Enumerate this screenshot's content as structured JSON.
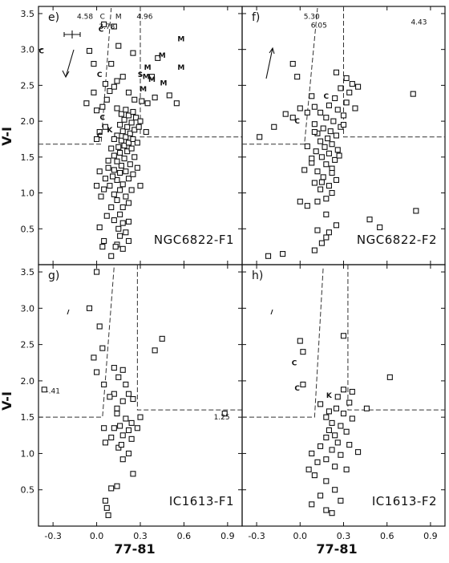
{
  "chart_data": [
    {
      "type": "scatter",
      "panel": "e)",
      "label": "NGC6822-F1",
      "xlim": [
        -0.4,
        1.0
      ],
      "ylim": [
        0.0,
        3.6
      ],
      "xticks": [],
      "yticks": [
        "0.5",
        "1.0",
        "1.5",
        "2.0",
        "2.5",
        "3.0",
        "3.5"
      ],
      "xlabel": "",
      "ylabel": "V-I",
      "boundary": {
        "diag": [
          [
            0.1,
            3.6
          ],
          [
            0.03,
            1.68
          ]
        ],
        "horizontal_y": 1.68,
        "vertical_x": 0.3,
        "horizontal_right_y": 1.78
      },
      "off_scale_notes": [
        {
          "text": "4.58",
          "x": -0.08,
          "y": 3.46
        },
        {
          "text": "3.78",
          "x": 0.07,
          "y": 3.32
        },
        {
          "text": "4.96",
          "x": 0.33,
          "y": 3.46
        },
        {
          "text": "C",
          "x": 0.04,
          "y": 3.46
        },
        {
          "text": "M",
          "x": 0.15,
          "y": 3.46
        }
      ],
      "letter_marks": [
        {
          "text": "C",
          "x": -0.38,
          "y": 2.98
        },
        {
          "text": "C",
          "x": 0.03,
          "y": 3.28
        },
        {
          "text": "C",
          "x": 0.02,
          "y": 2.65
        },
        {
          "text": "C",
          "x": 0.04,
          "y": 2.05
        },
        {
          "text": "C",
          "x": 0.02,
          "y": 1.8
        },
        {
          "text": "K",
          "x": 0.09,
          "y": 1.88
        },
        {
          "text": "M",
          "x": 0.58,
          "y": 3.15
        },
        {
          "text": "M",
          "x": 0.45,
          "y": 2.92
        },
        {
          "text": "M",
          "x": 0.35,
          "y": 2.75
        },
        {
          "text": "M",
          "x": 0.58,
          "y": 2.75
        },
        {
          "text": "M",
          "x": 0.38,
          "y": 2.58
        },
        {
          "text": "M",
          "x": 0.46,
          "y": 2.53
        },
        {
          "text": "M",
          "x": 0.34,
          "y": 2.62
        },
        {
          "text": "M",
          "x": 0.32,
          "y": 2.45
        },
        {
          "text": "S",
          "x": 0.3,
          "y": 2.65
        }
      ],
      "points": [
        [
          0.1,
          0.12
        ],
        [
          0.14,
          0.28
        ],
        [
          0.18,
          0.22
        ],
        [
          0.16,
          0.4
        ],
        [
          0.2,
          0.45
        ],
        [
          0.15,
          0.5
        ],
        [
          0.22,
          0.33
        ],
        [
          0.05,
          0.33
        ],
        [
          0.04,
          0.25
        ],
        [
          0.13,
          0.25
        ],
        [
          0.12,
          0.62
        ],
        [
          0.16,
          0.7
        ],
        [
          0.18,
          0.8
        ],
        [
          0.1,
          0.8
        ],
        [
          0.22,
          0.86
        ],
        [
          0.14,
          0.9
        ],
        [
          0.2,
          0.95
        ],
        [
          0.12,
          0.98
        ],
        [
          0.16,
          1.04
        ],
        [
          0.24,
          1.04
        ],
        [
          0.09,
          1.1
        ],
        [
          0.18,
          1.12
        ],
        [
          0.14,
          1.18
        ],
        [
          0.22,
          1.2
        ],
        [
          0.11,
          1.23
        ],
        [
          0.16,
          1.28
        ],
        [
          0.2,
          1.3
        ],
        [
          0.25,
          1.26
        ],
        [
          0.12,
          1.32
        ],
        [
          0.02,
          1.3
        ],
        [
          0.17,
          1.38
        ],
        [
          0.23,
          1.4
        ],
        [
          0.14,
          1.44
        ],
        [
          0.19,
          1.48
        ],
        [
          0.26,
          1.5
        ],
        [
          0.12,
          1.52
        ],
        [
          0.16,
          1.56
        ],
        [
          0.21,
          1.58
        ],
        [
          0.24,
          1.62
        ],
        [
          0.15,
          1.64
        ],
        [
          0.19,
          1.66
        ],
        [
          0.22,
          1.7
        ],
        [
          0.17,
          1.73
        ],
        [
          0.25,
          1.75
        ],
        [
          0.2,
          1.78
        ],
        [
          0.14,
          1.8
        ],
        [
          0.23,
          1.83
        ],
        [
          0.18,
          1.86
        ],
        [
          0.26,
          1.88
        ],
        [
          0.21,
          1.92
        ],
        [
          0.16,
          1.95
        ],
        [
          0.24,
          1.98
        ],
        [
          0.19,
          2.02
        ],
        [
          0.27,
          2.05
        ],
        [
          0.22,
          2.08
        ],
        [
          0.17,
          2.1
        ],
        [
          0.25,
          2.13
        ],
        [
          0.2,
          2.16
        ],
        [
          0.14,
          2.18
        ],
        [
          0.28,
          1.7
        ],
        [
          0.29,
          1.92
        ],
        [
          0.12,
          1.75
        ],
        [
          0.1,
          1.62
        ],
        [
          0.08,
          1.45
        ],
        [
          0.06,
          1.2
        ],
        [
          0.05,
          1.05
        ],
        [
          0.03,
          0.95
        ],
        [
          0.3,
          1.1
        ],
        [
          0.28,
          1.35
        ],
        [
          0.0,
          1.75
        ],
        [
          0.04,
          2.2
        ],
        [
          0.07,
          2.3
        ],
        [
          0.09,
          2.42
        ],
        [
          0.12,
          2.48
        ],
        [
          0.06,
          2.52
        ],
        [
          0.14,
          2.56
        ],
        [
          0.18,
          2.62
        ],
        [
          0.22,
          2.4
        ],
        [
          0.26,
          2.3
        ],
        [
          0.31,
          2.28
        ],
        [
          0.35,
          2.25
        ],
        [
          0.4,
          2.33
        ],
        [
          0.5,
          2.36
        ],
        [
          0.55,
          2.25
        ],
        [
          0.38,
          2.62
        ],
        [
          0.42,
          2.88
        ],
        [
          0.25,
          2.95
        ],
        [
          0.15,
          3.05
        ],
        [
          0.1,
          2.8
        ],
        [
          0.12,
          3.32
        ],
        [
          0.05,
          3.35
        ],
        [
          0.3,
          2.0
        ],
        [
          0.34,
          1.85
        ],
        [
          0.0,
          2.15
        ],
        [
          -0.02,
          2.4
        ],
        [
          -0.07,
          2.25
        ],
        [
          -0.02,
          2.8
        ],
        [
          -0.05,
          2.98
        ],
        [
          0.02,
          1.85
        ],
        [
          0.06,
          1.92
        ],
        [
          0.08,
          1.35
        ],
        [
          0.0,
          1.1
        ],
        [
          0.02,
          0.52
        ],
        [
          0.07,
          0.68
        ],
        [
          0.22,
          0.6
        ],
        [
          0.18,
          0.58
        ]
      ]
    },
    {
      "type": "scatter",
      "panel": "f)",
      "label": "NGC6822-F2",
      "xlim": [
        -0.4,
        1.0
      ],
      "ylim": [
        0.0,
        3.6
      ],
      "xticks": [],
      "yticks": [],
      "xlabel": "",
      "ylabel": "",
      "boundary": {
        "diag": [
          [
            0.12,
            3.6
          ],
          [
            0.03,
            1.68
          ]
        ],
        "horizontal_y": 1.68,
        "vertical_x": 0.3,
        "horizontal_right_y": 1.78
      },
      "off_scale_notes": [
        {
          "text": "5.30",
          "x": 0.08,
          "y": 3.46
        },
        {
          "text": "6.05",
          "x": 0.13,
          "y": 3.34
        },
        {
          "text": "4.43",
          "x": 0.82,
          "y": 3.38
        }
      ],
      "letter_marks": [
        {
          "text": "C",
          "x": -0.02,
          "y": 2.0
        },
        {
          "text": "C",
          "x": 0.18,
          "y": 2.35
        }
      ],
      "points": [
        [
          -0.22,
          0.12
        ],
        [
          -0.12,
          0.15
        ],
        [
          0.1,
          0.2
        ],
        [
          0.15,
          0.3
        ],
        [
          0.18,
          0.38
        ],
        [
          0.2,
          0.45
        ],
        [
          0.12,
          0.48
        ],
        [
          0.25,
          0.55
        ],
        [
          0.48,
          0.63
        ],
        [
          0.55,
          0.52
        ],
        [
          0.8,
          0.75
        ],
        [
          0.05,
          0.82
        ],
        [
          0.12,
          0.88
        ],
        [
          0.18,
          0.92
        ],
        [
          0.22,
          1.0
        ],
        [
          0.14,
          1.05
        ],
        [
          0.2,
          1.1
        ],
        [
          0.1,
          1.14
        ],
        [
          0.25,
          1.18
        ],
        [
          0.16,
          1.22
        ],
        [
          0.12,
          1.3
        ],
        [
          0.22,
          1.34
        ],
        [
          0.18,
          1.4
        ],
        [
          0.08,
          1.42
        ],
        [
          0.24,
          1.46
        ],
        [
          0.15,
          1.5
        ],
        [
          0.2,
          1.55
        ],
        [
          0.11,
          1.58
        ],
        [
          0.26,
          1.6
        ],
        [
          0.17,
          1.64
        ],
        [
          0.22,
          1.68
        ],
        [
          0.14,
          1.72
        ],
        [
          0.19,
          1.76
        ],
        [
          0.25,
          1.8
        ],
        [
          0.12,
          1.83
        ],
        [
          0.21,
          1.86
        ],
        [
          0.16,
          1.9
        ],
        [
          0.28,
          1.92
        ],
        [
          0.1,
          1.96
        ],
        [
          0.23,
          2.0
        ],
        [
          0.18,
          2.05
        ],
        [
          0.3,
          2.08
        ],
        [
          0.14,
          2.12
        ],
        [
          0.26,
          2.16
        ],
        [
          0.2,
          2.22
        ],
        [
          0.32,
          2.26
        ],
        [
          0.24,
          2.32
        ],
        [
          0.34,
          2.4
        ],
        [
          0.28,
          2.46
        ],
        [
          0.36,
          2.52
        ],
        [
          0.4,
          2.48
        ],
        [
          0.32,
          2.6
        ],
        [
          0.25,
          2.68
        ],
        [
          0.05,
          2.12
        ],
        [
          0.0,
          2.18
        ],
        [
          -0.05,
          2.05
        ],
        [
          -0.1,
          2.1
        ],
        [
          -0.18,
          1.92
        ],
        [
          -0.28,
          1.78
        ],
        [
          -0.05,
          2.8
        ],
        [
          -0.02,
          2.62
        ],
        [
          0.08,
          2.35
        ],
        [
          0.1,
          2.2
        ],
        [
          0.05,
          1.65
        ],
        [
          0.08,
          1.48
        ],
        [
          0.03,
          1.32
        ],
        [
          0.0,
          0.88
        ],
        [
          0.18,
          0.7
        ],
        [
          0.3,
          1.95
        ],
        [
          0.38,
          2.18
        ],
        [
          0.78,
          2.38
        ],
        [
          0.1,
          1.85
        ],
        [
          0.27,
          1.52
        ],
        [
          0.15,
          1.15
        ],
        [
          0.22,
          1.28
        ]
      ]
    },
    {
      "type": "scatter",
      "panel": "g)",
      "label": "IC1613-F1",
      "xlim": [
        -0.4,
        1.0
      ],
      "ylim": [
        0.0,
        3.6
      ],
      "xticks": [
        "-0.3",
        "0.0",
        "0.3",
        "0.6",
        "0.9"
      ],
      "yticks": [
        "0.5",
        "1.0",
        "1.5",
        "2.0",
        "2.5",
        "3.0",
        "3.5"
      ],
      "xlabel": "77-81",
      "ylabel": "V-I",
      "boundary": {
        "diag": [
          [
            0.12,
            3.6
          ],
          [
            0.04,
            1.5
          ]
        ],
        "horizontal_y": 1.5,
        "vertical_x": 0.28,
        "horizontal_right_y": 1.6
      },
      "off_scale_notes": [
        {
          "text": "-.41",
          "x": -0.3,
          "y": 1.86
        },
        {
          "text": "1.25",
          "x": 0.86,
          "y": 1.5
        }
      ],
      "letter_marks": [],
      "points": [
        [
          -0.36,
          1.88
        ],
        [
          0.88,
          1.55
        ],
        [
          0.0,
          3.5
        ],
        [
          -0.05,
          3.0
        ],
        [
          0.02,
          2.75
        ],
        [
          0.04,
          2.45
        ],
        [
          -0.02,
          2.32
        ],
        [
          0.0,
          2.12
        ],
        [
          0.05,
          1.95
        ],
        [
          0.12,
          2.18
        ],
        [
          0.15,
          2.05
        ],
        [
          0.18,
          2.15
        ],
        [
          0.2,
          1.95
        ],
        [
          0.22,
          1.82
        ],
        [
          0.12,
          1.82
        ],
        [
          0.18,
          1.72
        ],
        [
          0.25,
          1.75
        ],
        [
          0.3,
          1.5
        ],
        [
          0.4,
          2.42
        ],
        [
          0.45,
          2.58
        ],
        [
          0.14,
          1.55
        ],
        [
          0.2,
          1.48
        ],
        [
          0.24,
          1.42
        ],
        [
          0.16,
          1.38
        ],
        [
          0.22,
          1.32
        ],
        [
          0.12,
          1.35
        ],
        [
          0.18,
          1.25
        ],
        [
          0.24,
          1.2
        ],
        [
          0.1,
          1.22
        ],
        [
          0.05,
          1.35
        ],
        [
          0.06,
          1.15
        ],
        [
          0.15,
          1.08
        ],
        [
          0.22,
          1.0
        ],
        [
          0.18,
          0.92
        ],
        [
          0.25,
          0.72
        ],
        [
          0.14,
          0.55
        ],
        [
          0.1,
          0.52
        ],
        [
          0.06,
          0.35
        ],
        [
          0.07,
          0.25
        ],
        [
          0.08,
          0.15
        ],
        [
          0.14,
          1.62
        ],
        [
          0.28,
          1.35
        ],
        [
          0.17,
          1.12
        ],
        [
          0.09,
          1.78
        ]
      ]
    },
    {
      "type": "scatter",
      "panel": "h)",
      "label": "IC1613-F2",
      "xlim": [
        -0.4,
        1.0
      ],
      "ylim": [
        0.0,
        3.6
      ],
      "xticks": [
        "-0.3",
        "0.0",
        "0.3",
        "0.6",
        "0.9"
      ],
      "yticks": [],
      "xlabel": "77-81",
      "ylabel": "",
      "boundary": {
        "diag": [
          [
            0.16,
            3.6
          ],
          [
            0.1,
            1.5
          ]
        ],
        "horizontal_y": 1.5,
        "vertical_x": 0.33,
        "horizontal_right_y": 1.6
      },
      "off_scale_notes": [],
      "letter_marks": [
        {
          "text": "C",
          "x": -0.04,
          "y": 2.25
        },
        {
          "text": "C",
          "x": -0.02,
          "y": 1.9
        },
        {
          "text": "K",
          "x": 0.2,
          "y": 1.8
        }
      ],
      "points": [
        [
          0.0,
          2.55
        ],
        [
          0.02,
          2.4
        ],
        [
          0.3,
          2.62
        ],
        [
          0.62,
          2.05
        ],
        [
          0.46,
          1.62
        ],
        [
          0.34,
          1.7
        ],
        [
          0.3,
          1.55
        ],
        [
          0.25,
          1.62
        ],
        [
          0.2,
          1.58
        ],
        [
          0.18,
          1.5
        ],
        [
          0.22,
          1.42
        ],
        [
          0.28,
          1.38
        ],
        [
          0.32,
          1.3
        ],
        [
          0.24,
          1.25
        ],
        [
          0.18,
          1.22
        ],
        [
          0.26,
          1.15
        ],
        [
          0.14,
          1.1
        ],
        [
          0.22,
          1.05
        ],
        [
          0.28,
          0.98
        ],
        [
          0.18,
          0.92
        ],
        [
          0.12,
          0.88
        ],
        [
          0.24,
          0.82
        ],
        [
          0.32,
          0.78
        ],
        [
          0.06,
          0.78
        ],
        [
          0.1,
          0.7
        ],
        [
          0.18,
          0.62
        ],
        [
          0.24,
          0.5
        ],
        [
          0.14,
          0.42
        ],
        [
          0.08,
          0.3
        ],
        [
          0.18,
          0.22
        ],
        [
          0.28,
          0.35
        ],
        [
          0.22,
          0.18
        ],
        [
          0.02,
          1.95
        ],
        [
          0.36,
          1.85
        ],
        [
          0.26,
          1.78
        ],
        [
          0.14,
          1.68
        ],
        [
          0.3,
          1.88
        ],
        [
          0.08,
          1.0
        ],
        [
          0.4,
          1.02
        ],
        [
          0.34,
          1.12
        ],
        [
          0.2,
          1.32
        ],
        [
          0.36,
          1.48
        ]
      ]
    }
  ]
}
